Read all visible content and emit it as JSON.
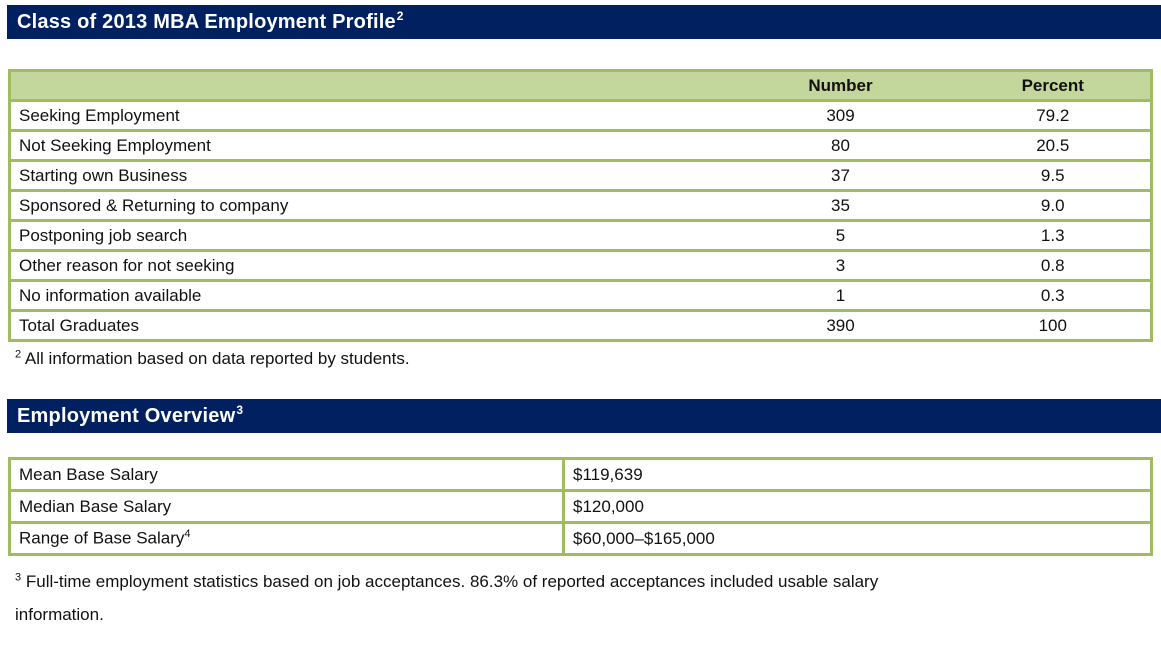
{
  "colors": {
    "header_bar": "#002060",
    "table_header_bg": "#C3D69B",
    "table_border": "#9FBC60",
    "bar_text": "#FFFFFF"
  },
  "section1": {
    "title": "Class of 2013 MBA Employment Profile",
    "title_sup": "2",
    "table": {
      "columns": [
        "",
        "Number",
        "Percent"
      ],
      "rows": [
        {
          "label": "Seeking Employment",
          "number": "309",
          "percent": "79.2"
        },
        {
          "label": "Not Seeking Employment",
          "number": "80",
          "percent": "20.5"
        },
        {
          "label": "Starting own Business",
          "number": "37",
          "percent": "9.5"
        },
        {
          "label": "Sponsored & Returning to company",
          "number": "35",
          "percent": "9.0"
        },
        {
          "label": "Postponing job search",
          "number": "5",
          "percent": "1.3"
        },
        {
          "label": "Other reason for not seeking",
          "number": "3",
          "percent": "0.8"
        },
        {
          "label": "No information available",
          "number": "1",
          "percent": "0.3"
        },
        {
          "label": "Total Graduates",
          "number": "390",
          "percent": "100"
        }
      ]
    },
    "footnote": {
      "sup": "2",
      "text": "All information based on data reported by students."
    }
  },
  "section2": {
    "title": "Employment Overview",
    "title_sup": "3",
    "table": {
      "rows": [
        {
          "label": "Mean Base Salary",
          "label_sup": "",
          "value": "$119,639"
        },
        {
          "label": "Median Base Salary",
          "label_sup": "",
          "value": "$120,000"
        },
        {
          "label": "Range of Base Salary",
          "label_sup": "4",
          "value": "$60,000–$165,000"
        }
      ]
    },
    "footnote": {
      "sup": "3",
      "text": "Full-time employment statistics based on job acceptances. 86.3% of reported acceptances included usable salary information."
    }
  }
}
